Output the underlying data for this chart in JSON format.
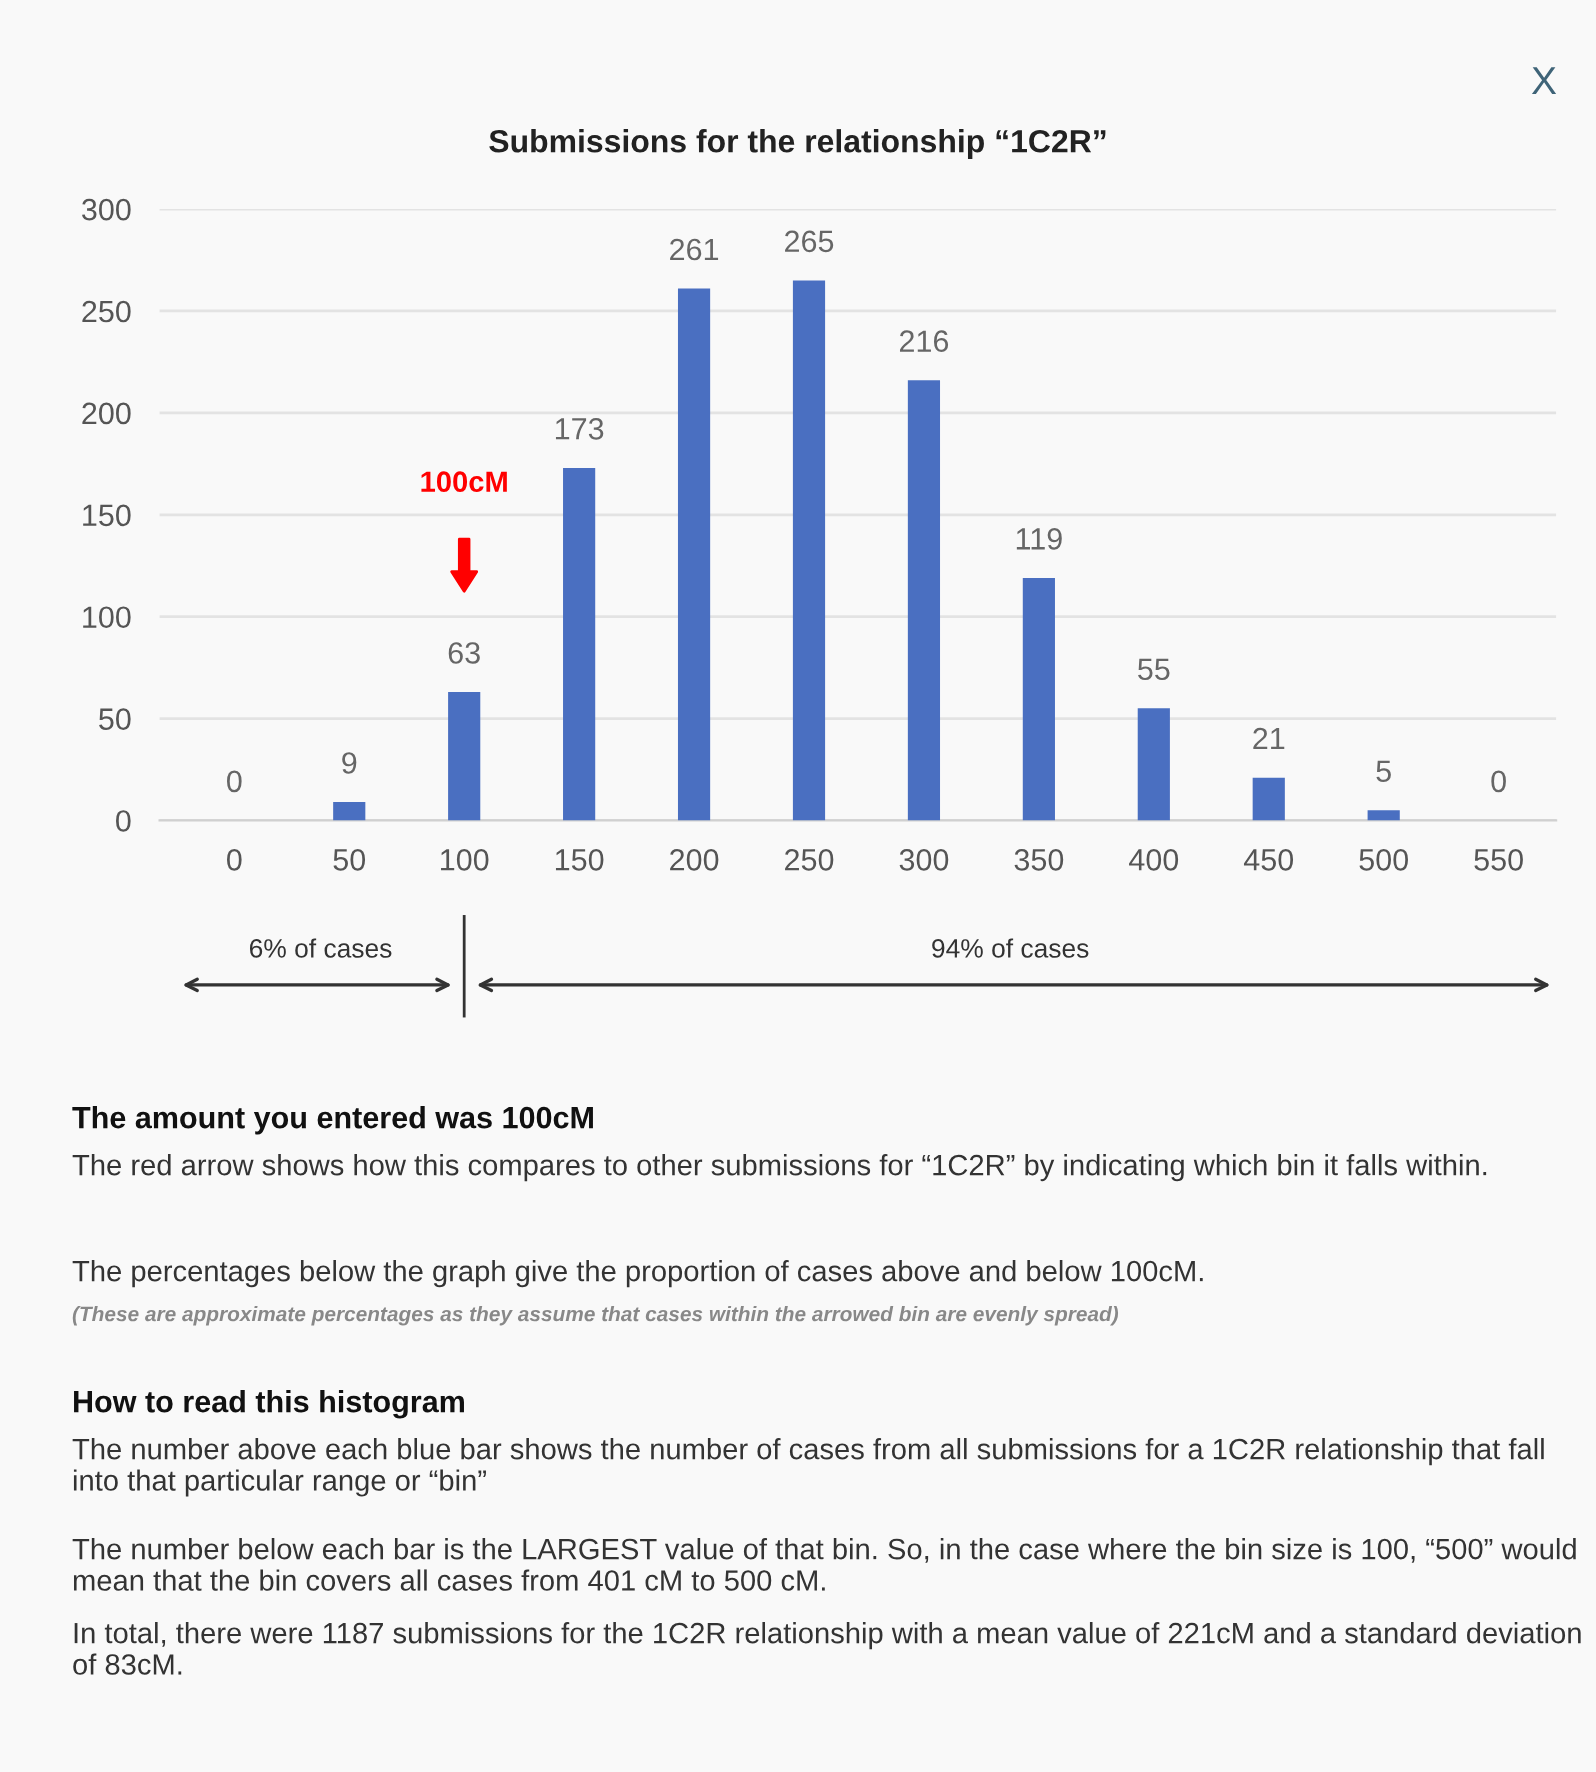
{
  "chart_data": {
    "type": "bar",
    "title": "Submissions for the relationship “1C2R”",
    "categories": [
      "0",
      "50",
      "100",
      "150",
      "200",
      "250",
      "300",
      "350",
      "400",
      "450",
      "500",
      "550"
    ],
    "values": [
      0,
      9,
      63,
      173,
      261,
      265,
      216,
      119,
      55,
      21,
      5,
      0
    ],
    "color": "#4a6fc1",
    "data_labels": true,
    "ylim": [
      0,
      300
    ],
    "yticks": [
      0,
      50,
      100,
      150,
      200,
      250,
      300
    ],
    "grid": "y",
    "legend": false,
    "annotations": [
      "100cM",
      "6% of cases",
      "94% of cases",
      "X",
      "The amount you entered was 100cM",
      "The red arrow shows how this compares to other submissions for “1C2R” by indicating which bin it falls within.",
      "The percentages below the graph give the proportion of cases above and below 100cM.",
      "(These are approximate percentages as they assume that cases within the arrowed bin are evenly spread)",
      "How to read this histogram",
      "The number above each blue bar shows the number of cases from all submissions for a 1C2R relationship that fall into that particular range or “bin”",
      "The number below each bar is the LARGEST value of that bin. So, in the case where the bin size is 100, “500” would mean that the bin covers all cases from 401 cM to 500 cM.",
      "In total, there were 1187 submissions for the 1C2R relationship with a mean value of 221cM and a standard deviation of 83cM."
    ]
  }
}
